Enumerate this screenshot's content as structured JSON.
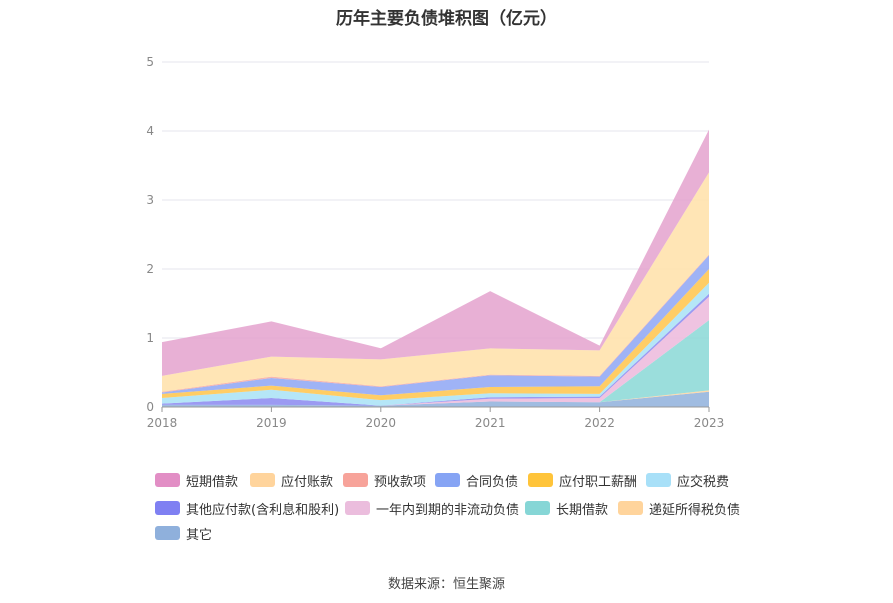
{
  "title": "历年主要负债堆积图（亿元）",
  "source": "数据来源：恒生聚源",
  "chart_data": {
    "type": "area",
    "stacked": true,
    "title": "历年主要负债堆积图（亿元）",
    "xlabel": "",
    "ylabel": "",
    "categories": [
      "2018",
      "2019",
      "2020",
      "2021",
      "2022",
      "2023"
    ],
    "ylim": [
      0,
      5
    ],
    "yticks": [
      "0",
      "1",
      "2",
      "3",
      "4",
      "5"
    ],
    "grid": true,
    "legend_position": "bottom",
    "series": [
      {
        "name": "其它",
        "color": "#8fb0dc",
        "values": [
          0.03,
          0.03,
          0.02,
          0.08,
          0.07,
          0.22
        ]
      },
      {
        "name": "递延所得税负债",
        "color": "#ffd49c",
        "values": [
          0.0,
          0.0,
          0.0,
          0.0,
          0.0,
          0.02
        ]
      },
      {
        "name": "长期借款",
        "color": "#8ad8d6",
        "values": [
          0.0,
          0.0,
          0.0,
          0.0,
          0.0,
          1.02
        ]
      },
      {
        "name": "一年内到期的非流动负债",
        "color": "#ecb9dc",
        "values": [
          0.0,
          0.0,
          0.0,
          0.04,
          0.06,
          0.34
        ]
      },
      {
        "name": "其他应付款(含利息和股利)",
        "color": "#8a88f0",
        "values": [
          0.02,
          0.1,
          0.0,
          0.02,
          0.02,
          0.04
        ]
      },
      {
        "name": "应交税费",
        "color": "#a8e2f6",
        "values": [
          0.08,
          0.12,
          0.08,
          0.06,
          0.04,
          0.16
        ]
      },
      {
        "name": "应付职工薪酬",
        "color": "#ffc44a",
        "values": [
          0.06,
          0.06,
          0.07,
          0.09,
          0.11,
          0.2
        ]
      },
      {
        "name": "合同负债",
        "color": "#8ea6f4",
        "values": [
          0.02,
          0.11,
          0.12,
          0.17,
          0.14,
          0.2
        ]
      },
      {
        "name": "预收款项",
        "color": "#f7a9a0",
        "values": [
          0.01,
          0.02,
          0.01,
          0.01,
          0.01,
          0.01
        ]
      },
      {
        "name": "应付账款",
        "color": "#ffe0a8",
        "values": [
          0.23,
          0.29,
          0.39,
          0.38,
          0.37,
          1.19
        ]
      },
      {
        "name": "短期借款",
        "color": "#e4a2ce",
        "values": [
          0.49,
          0.51,
          0.16,
          0.83,
          0.07,
          0.62
        ]
      }
    ]
  },
  "legend": [
    {
      "label": "短期借款",
      "color": "#e28ec5"
    },
    {
      "label": "应付账款",
      "color": "#ffd49c"
    },
    {
      "label": "预收款项",
      "color": "#f7a39a"
    },
    {
      "label": "合同负债",
      "color": "#86a4f4"
    },
    {
      "label": "应付职工薪酬",
      "color": "#ffc43a"
    },
    {
      "label": "应交税费",
      "color": "#a8e0f8"
    },
    {
      "label": "其他应付款(含利息和股利)",
      "color": "#7f80f2"
    },
    {
      "label": "一年内到期的非流动负债",
      "color": "#ebbddd"
    },
    {
      "label": "长期借款",
      "color": "#86d6d6"
    },
    {
      "label": "递延所得税负债",
      "color": "#ffd49c"
    },
    {
      "label": "其它",
      "color": "#8fb0dc"
    }
  ]
}
